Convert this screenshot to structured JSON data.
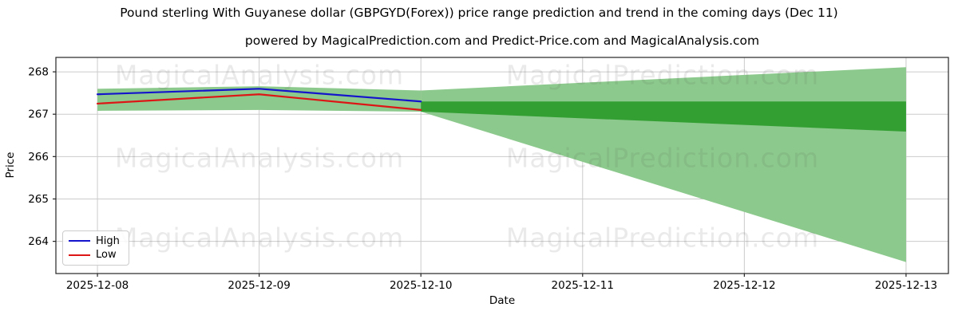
{
  "chart_data": {
    "type": "line",
    "title": "Pound sterling With Guyanese dollar (GBPGYD(Forex)) price range prediction and trend in the coming days (Dec 11)",
    "subtitle": "powered by MagicalPrediction.com and Predict-Price.com and MagicalAnalysis.com",
    "xlabel": "Date",
    "ylabel": "Price",
    "x_categories": [
      "2025-12-08",
      "2025-12-09",
      "2025-12-10",
      "2025-12-11",
      "2025-12-12",
      "2025-12-13"
    ],
    "y_ticks": [
      264,
      265,
      266,
      267,
      268
    ],
    "ylim": [
      263.24,
      268.34
    ],
    "xlim_days": [
      -0.257,
      5.262
    ],
    "grid": true,
    "legend_position": "lower left",
    "colors": {
      "high_line": "#1414cc",
      "low_line": "#dd1515",
      "band_light_green": "#8cc98c",
      "band_dark_green": "#339f33",
      "gridline": "#cbcbcb",
      "spine": "#262626"
    },
    "series": [
      {
        "name": "High",
        "color": "#1414cc",
        "x": [
          0,
          1,
          2
        ],
        "values": [
          267.47,
          267.6,
          267.3
        ]
      },
      {
        "name": "Low",
        "color": "#dd1515",
        "x": [
          0,
          1,
          2
        ],
        "values": [
          267.25,
          267.47,
          267.1
        ]
      }
    ],
    "bands": [
      {
        "name": "history-range",
        "color": "#8cc98c",
        "x": [
          0,
          1,
          2
        ],
        "top": [
          267.6,
          267.66,
          267.56
        ],
        "bottom": [
          267.08,
          267.1,
          267.06
        ]
      },
      {
        "name": "forecast-outer",
        "color": "#8cc98c",
        "x": [
          2,
          5
        ],
        "top": [
          267.56,
          268.11
        ],
        "bottom": [
          267.06,
          263.51
        ]
      },
      {
        "name": "forecast-inner",
        "color": "#339f33",
        "x": [
          2,
          5
        ],
        "top": [
          267.3,
          267.3
        ],
        "bottom": [
          267.06,
          266.59
        ]
      }
    ],
    "legend": [
      {
        "label": "High",
        "color": "#1414cc"
      },
      {
        "label": "Low",
        "color": "#dd1515"
      }
    ],
    "watermarks": {
      "left": "MagicalAnalysis.com",
      "right": "MagicalPrediction.com"
    }
  }
}
